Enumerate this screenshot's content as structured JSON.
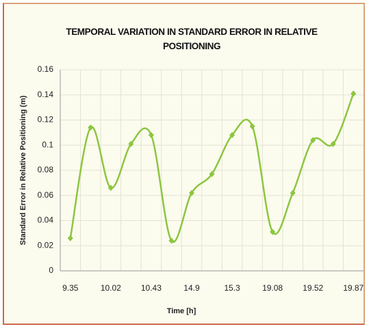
{
  "chart_data": {
    "type": "line",
    "title": "TEMPORAL VARIATION IN STANDARD ERROR IN RELATIVE POSITIONING",
    "x_label": "Time [h]",
    "y_label": "Standard Error in Relative Positioning (m)",
    "categories": [
      "9.35",
      null,
      "10.02",
      null,
      "10.43",
      null,
      "14.9",
      null,
      "15.3",
      null,
      "19.08",
      null,
      "19.52",
      null,
      "19.87"
    ],
    "series": [
      {
        "name": "Standard Error",
        "color": "#8cc63f",
        "values": [
          0.026,
          0.114,
          0.066,
          0.101,
          0.108,
          0.024,
          0.062,
          0.077,
          0.108,
          0.115,
          0.031,
          0.062,
          0.104,
          0.101,
          0.141
        ]
      }
    ],
    "ylim": [
      0,
      0.16
    ],
    "yticks": [
      0,
      0.02,
      0.04,
      0.06,
      0.08,
      0.1,
      0.12,
      0.14,
      0.16
    ],
    "grid": true,
    "smooth": true
  }
}
